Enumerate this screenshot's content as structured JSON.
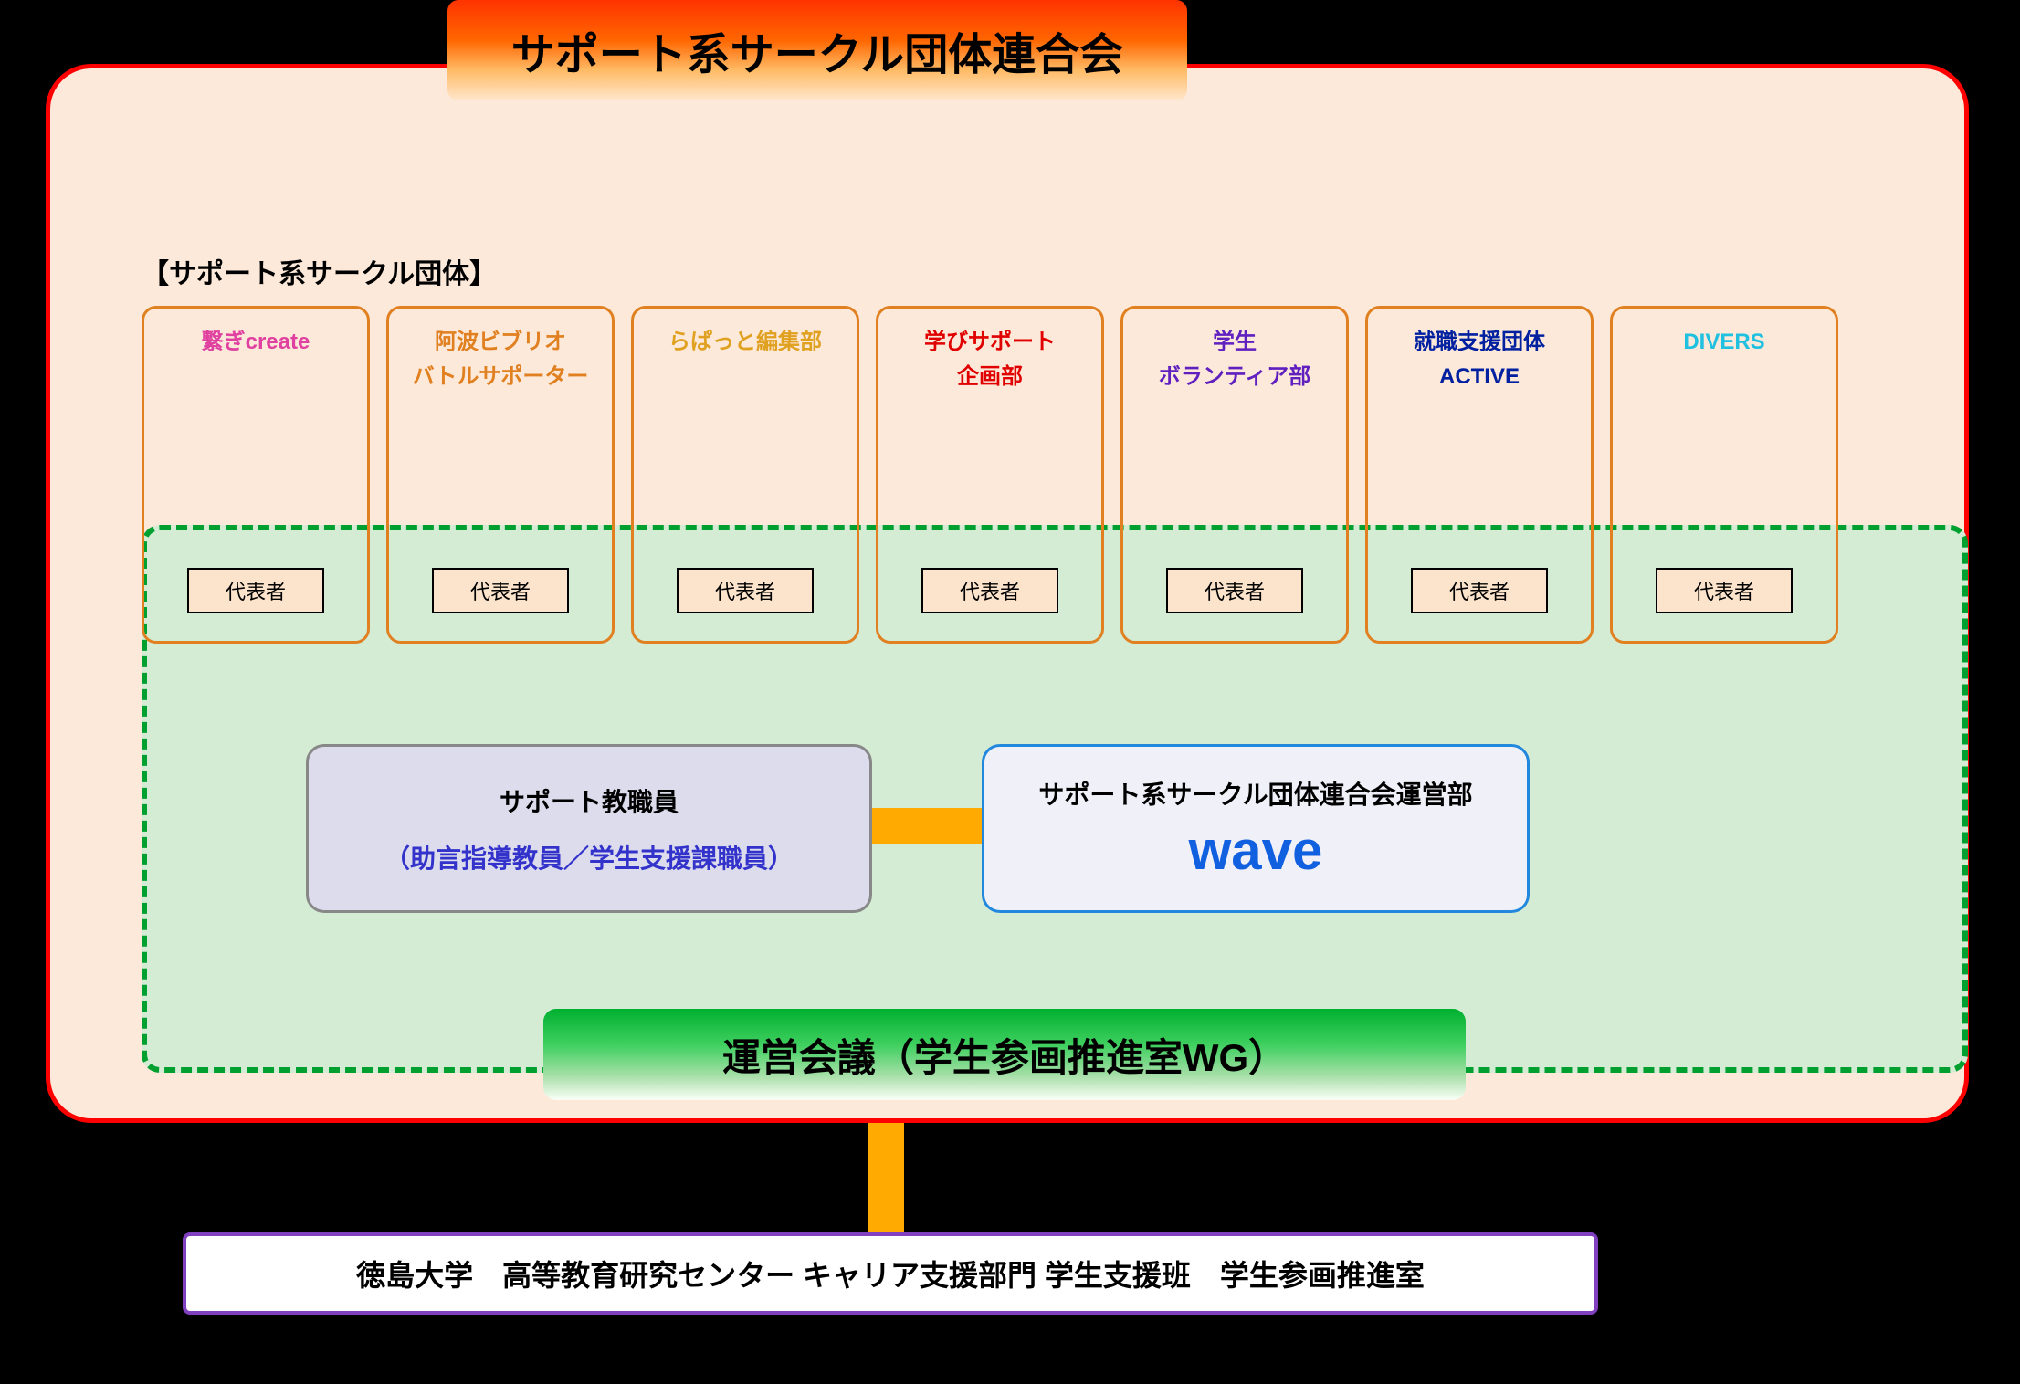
{
  "title_banner": {
    "text": "サポート系サークル団体連合会",
    "gradient_top": "#ff3300",
    "gradient_bottom": "#ffe6cc",
    "fontsize": 48,
    "text_color": "#000000"
  },
  "main_container": {
    "background": "#fce9d9",
    "border_color": "#ff0000",
    "border_width": 5,
    "border_radius": 50
  },
  "section_label": {
    "text": "【サポート系サークル団体】",
    "fontsize": 30,
    "color": "#000000"
  },
  "circles": [
    {
      "title": "繋ぎcreate",
      "color": "#e040a0",
      "rep": "代表者"
    },
    {
      "title": "阿波ビブリオ\nバトルサポーター",
      "color": "#e08020",
      "rep": "代表者"
    },
    {
      "title": "らぱっと編集部",
      "color": "#e0a020",
      "rep": "代表者"
    },
    {
      "title": "学びサポート\n企画部",
      "color": "#e00000",
      "rep": "代表者"
    },
    {
      "title": "学生\nボランティア部",
      "color": "#6020c0",
      "rep": "代表者"
    },
    {
      "title": "就職支援団体\nACTIVE",
      "color": "#0020a0",
      "rep": "代表者"
    },
    {
      "title": "DIVERS",
      "color": "#20c0e0",
      "rep": "代表者"
    }
  ],
  "circle_box": {
    "border_color": "#e08020",
    "border_width": 3,
    "border_radius": 16,
    "title_fontsize": 24
  },
  "rep_box": {
    "border_color": "#000000",
    "background": "#fce4cc",
    "fontsize": 22
  },
  "dashed_container": {
    "border_color": "#00a030",
    "border_width": 6,
    "background": "#d4ebd4",
    "border_radius": 20
  },
  "staff_box": {
    "line1": "サポート教職員",
    "line2": "（助言指導教員／学生支援課職員）",
    "background": "#dcdcec",
    "border_color": "#888888",
    "line1_color": "#000000",
    "line2_color": "#3333cc",
    "fontsize": 28
  },
  "wave_box": {
    "line1": "サポート系サークル団体連合会運営部",
    "line2": "wave",
    "background": "#f0f0f8",
    "border_color": "#2288dd",
    "line1_color": "#000000",
    "line1_fontsize": 28,
    "line2_color": "#1060e0",
    "line2_fontsize": 60
  },
  "connector": {
    "color": "#ffaa00"
  },
  "meeting_banner": {
    "text": "運営会議（学生参画推進室WG）",
    "gradient_top": "#00b030",
    "gradient_bottom": "#fafff8",
    "fontsize": 42,
    "text_color": "#000000"
  },
  "bottom_box": {
    "text": "徳島大学　高等教育研究センター キャリア支援部門 学生支援班　学生参画推進室",
    "background": "#ffffff",
    "border_color": "#8040c0",
    "border_width": 4,
    "fontsize": 32,
    "text_color": "#000000"
  }
}
